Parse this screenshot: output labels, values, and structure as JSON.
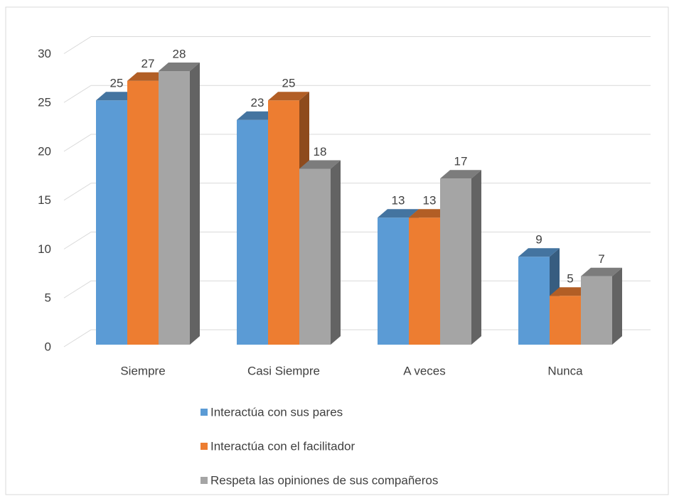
{
  "chart_data": {
    "type": "bar3d",
    "categories": [
      "Siempre",
      "Casi Siempre",
      "A veces",
      "Nunca"
    ],
    "series": [
      {
        "name": "Interactúa con sus pares",
        "color": "#5b9bd5",
        "values": [
          25,
          23,
          13,
          9
        ]
      },
      {
        "name": "Interactúa con el facilitador",
        "color": "#ed7d31",
        "values": [
          27,
          25,
          13,
          5
        ]
      },
      {
        "name": "Respeta las opiniones de sus compañeros",
        "color": "#a5a5a5",
        "values": [
          28,
          18,
          17,
          7
        ]
      }
    ],
    "ylim": [
      0,
      30
    ],
    "yticks": [
      0,
      5,
      10,
      15,
      20,
      25,
      30
    ],
    "grid": true,
    "legend": "bottom"
  }
}
